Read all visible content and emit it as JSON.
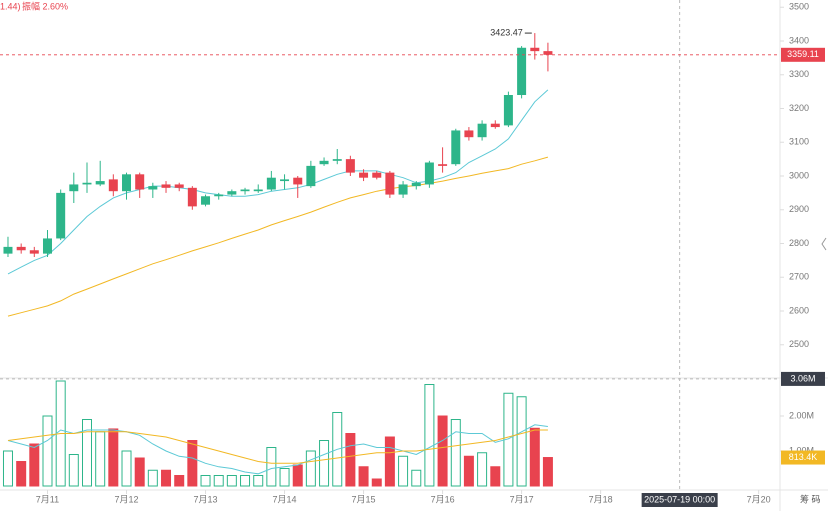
{
  "chart_data": {
    "type": "candlestick",
    "header": {
      "prefix": "1.44)",
      "amplitude": "振幅 2.60%"
    },
    "x": [
      10.5,
      10.667,
      10.833,
      11,
      11.167,
      11.333,
      11.5,
      11.667,
      11.833,
      12,
      12.167,
      12.333,
      12.5,
      12.667,
      12.833,
      13,
      13.167,
      13.333,
      13.5,
      13.667,
      13.833,
      14,
      14.167,
      14.333,
      14.5,
      14.667,
      14.833,
      15,
      15.167,
      15.333,
      15.5,
      15.667,
      15.833,
      16,
      16.167,
      16.333,
      16.5,
      16.667,
      16.833,
      17,
      17.167,
      17.333
    ],
    "xlim": [
      10.399,
      20.27
    ],
    "xticks": [
      {
        "value": 11,
        "label": "7月11"
      },
      {
        "value": 12,
        "label": "7月12"
      },
      {
        "value": 13,
        "label": "7月13"
      },
      {
        "value": 14,
        "label": "7月14"
      },
      {
        "value": 15,
        "label": "7月15"
      },
      {
        "value": 16,
        "label": "7月16"
      },
      {
        "value": 17,
        "label": "7月17"
      },
      {
        "value": 18,
        "label": "7月18"
      },
      {
        "value": 20,
        "label": "7月20"
      }
    ],
    "open": [
      2770,
      2790,
      2780,
      2770,
      2815,
      2955,
      2975,
      2975,
      2990,
      2955,
      3005,
      2960,
      2975,
      2975,
      2965,
      2915,
      2940,
      2945,
      2955,
      2955,
      2960,
      2985,
      2995,
      2970,
      3035,
      3045,
      3050,
      3010,
      3010,
      3010,
      2945,
      2970,
      2975,
      3035,
      3035,
      3135,
      3115,
      3155,
      3150,
      3240,
      3380,
      3370
    ],
    "high": [
      2820,
      2800,
      2790,
      2840,
      2960,
      3010,
      3040,
      3045,
      3005,
      3010,
      3010,
      2980,
      2985,
      2980,
      2970,
      2945,
      2950,
      2960,
      2965,
      2975,
      3015,
      3005,
      3000,
      3045,
      3055,
      3080,
      3060,
      3020,
      3015,
      3015,
      2985,
      2985,
      3045,
      3085,
      3140,
      3145,
      3165,
      3165,
      3250,
      3385,
      3423.47,
      3395
    ],
    "low": [
      2760,
      2770,
      2760,
      2760,
      2810,
      2920,
      2950,
      2970,
      2940,
      2930,
      2935,
      2935,
      2950,
      2955,
      2900,
      2910,
      2930,
      2940,
      2945,
      2950,
      2955,
      2960,
      2935,
      2965,
      3030,
      3035,
      3000,
      2985,
      2990,
      2935,
      2935,
      2960,
      2965,
      3010,
      3030,
      3105,
      3105,
      3140,
      3145,
      3230,
      3345,
      3310
    ],
    "close": [
      2790,
      2780,
      2770,
      2815,
      2950,
      2975,
      2980,
      2985,
      2955,
      3005,
      2960,
      2970,
      2965,
      2965,
      2910,
      2940,
      2945,
      2955,
      2960,
      2960,
      2995,
      2990,
      2975,
      3030,
      3045,
      3050,
      3010,
      2995,
      2995,
      2945,
      2975,
      2980,
      3040,
      3030,
      3135,
      3115,
      3155,
      3145,
      3240,
      3380,
      3370,
      3359.11
    ],
    "up_color": "#2db58a",
    "down_color": "#e8434f",
    "ylim": [
      2401.5,
      3521.5
    ],
    "yticks": [
      2500,
      2600,
      2700,
      2800,
      2900,
      3000,
      3100,
      3200,
      3300,
      3400,
      3500
    ],
    "price_ma": [
      {
        "color": "#5cc9d6",
        "values": [
          2710,
          2730,
          2750,
          2765,
          2800,
          2840,
          2880,
          2910,
          2935,
          2950,
          2960,
          2970,
          2970,
          2965,
          2960,
          2950,
          2945,
          2940,
          2940,
          2945,
          2955,
          2960,
          2965,
          2975,
          2990,
          3005,
          3015,
          3015,
          3015,
          3005,
          2995,
          2980,
          2985,
          2995,
          3010,
          3040,
          3060,
          3080,
          3110,
          3165,
          3220,
          3255
        ]
      },
      {
        "color": "#f2b824",
        "values": [
          2585,
          2595,
          2605,
          2615,
          2630,
          2650,
          2665,
          2680,
          2695,
          2710,
          2725,
          2740,
          2752,
          2765,
          2778,
          2790,
          2802,
          2815,
          2828,
          2840,
          2855,
          2868,
          2880,
          2893,
          2908,
          2922,
          2935,
          2945,
          2955,
          2962,
          2968,
          2972,
          2978,
          2985,
          2993,
          3000,
          3008,
          3015,
          3022,
          3035,
          3045,
          3056
        ]
      }
    ],
    "volume": {
      "values": [
        1.0,
        0.7,
        1.2,
        2.0,
        3.0,
        0.9,
        1.9,
        1.55,
        1.63,
        1.0,
        0.8,
        0.45,
        0.45,
        0.3,
        1.3,
        0.3,
        0.3,
        0.3,
        0.3,
        0.3,
        1.1,
        0.5,
        0.6,
        1.0,
        1.3,
        2.1,
        1.5,
        0.55,
        0.2,
        1.4,
        0.85,
        0.45,
        2.9,
        2.0,
        1.9,
        0.85,
        0.95,
        0.55,
        2.65,
        2.55,
        1.65,
        0.8134
      ],
      "value_labels": [
        null,
        null,
        null,
        null,
        null,
        null,
        null,
        null,
        null,
        null,
        null,
        null,
        null,
        null,
        null,
        null,
        null,
        null,
        null,
        null,
        null,
        null,
        null,
        null,
        null,
        null,
        null,
        null,
        null,
        null,
        null,
        null,
        null,
        null,
        null,
        null,
        null,
        null,
        null,
        null,
        null,
        "813.4K"
      ],
      "ylim": [
        0,
        3.086
      ],
      "yticks": [
        {
          "value": 1,
          "label": "1.00M"
        },
        {
          "value": 2,
          "label": "2.00M"
        }
      ],
      "ma": [
        {
          "color": "#5cc9d6",
          "values": [
            1.3,
            1.2,
            1.1,
            1.3,
            1.6,
            1.5,
            1.6,
            1.6,
            1.6,
            1.55,
            1.45,
            1.2,
            1.0,
            0.85,
            0.8,
            0.65,
            0.55,
            0.5,
            0.4,
            0.35,
            0.5,
            0.55,
            0.6,
            0.75,
            0.9,
            1.05,
            1.15,
            1.2,
            1.1,
            1.1,
            1.0,
            0.9,
            1.1,
            1.3,
            1.55,
            1.5,
            1.5,
            1.25,
            1.35,
            1.55,
            1.75,
            1.7
          ]
        },
        {
          "color": "#f2b824",
          "values": [
            1.3,
            1.35,
            1.4,
            1.45,
            1.5,
            1.5,
            1.55,
            1.55,
            1.55,
            1.55,
            1.5,
            1.45,
            1.4,
            1.3,
            1.2,
            1.1,
            1.0,
            0.9,
            0.8,
            0.7,
            0.65,
            0.65,
            0.65,
            0.7,
            0.75,
            0.8,
            0.85,
            0.9,
            0.95,
            0.95,
            1.0,
            1.0,
            1.05,
            1.1,
            1.15,
            1.2,
            1.25,
            1.3,
            1.4,
            1.5,
            1.6,
            1.6
          ]
        }
      ]
    },
    "crosshair": {
      "x": {
        "value": 19,
        "label": "2025-07-19 00:00"
      },
      "volume": {
        "value": 3.06,
        "label": "3.06M"
      }
    },
    "footer": "筹 码"
  }
}
